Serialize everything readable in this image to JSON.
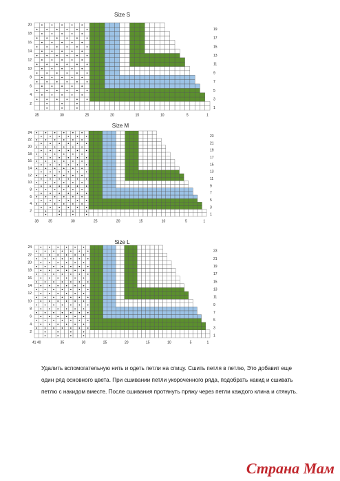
{
  "charts": [
    {
      "title": "Size S",
      "left_labels": [
        "20",
        "18",
        "16",
        "14",
        "12",
        "10",
        "8",
        "6",
        "4",
        "2"
      ],
      "right_labels": [
        "19",
        "17",
        "15",
        "13",
        "11",
        "9",
        "7",
        "5",
        "3",
        "1"
      ],
      "bottom_labels": [
        "35",
        "30",
        "25",
        "20",
        "15",
        "10",
        "5",
        "1"
      ]
    },
    {
      "title": "Size M",
      "left_labels": [
        "24",
        "22",
        "20",
        "18",
        "16",
        "14",
        "12",
        "10",
        "8",
        "6",
        "4",
        "2"
      ],
      "right_labels": [
        "23",
        "21",
        "19",
        "17",
        "15",
        "13",
        "11",
        "9",
        "7",
        "5",
        "3",
        "1"
      ],
      "bottom_labels": [
        "38",
        "35",
        "30",
        "25",
        "20",
        "15",
        "10",
        "5",
        "1"
      ]
    },
    {
      "title": "Size L",
      "left_labels": [
        "24",
        "22",
        "20",
        "18",
        "16",
        "14",
        "12",
        "10",
        "8",
        "6",
        "4",
        "2"
      ],
      "right_labels": [
        "23",
        "21",
        "19",
        "17",
        "15",
        "13",
        "11",
        "9",
        "7",
        "5",
        "3",
        "1"
      ],
      "bottom_labels": [
        "41 40",
        "35",
        "30",
        "25",
        "20",
        "15",
        "10",
        "5",
        "1"
      ]
    }
  ],
  "text": {
    "lines": [
      "Удалить вспомогательную нить и одеть петли на спицу. Сшить петля в петлю, Это добавит еще",
      "один ряд основного цвета. При сшивании петли укороченного ряда, подобрать накид и сшивать",
      "петлю с накидом вместе. После сшивания протянуть пряжу через петли каждого клина и стянуть."
    ]
  },
  "watermark": "Страна Мам"
}
